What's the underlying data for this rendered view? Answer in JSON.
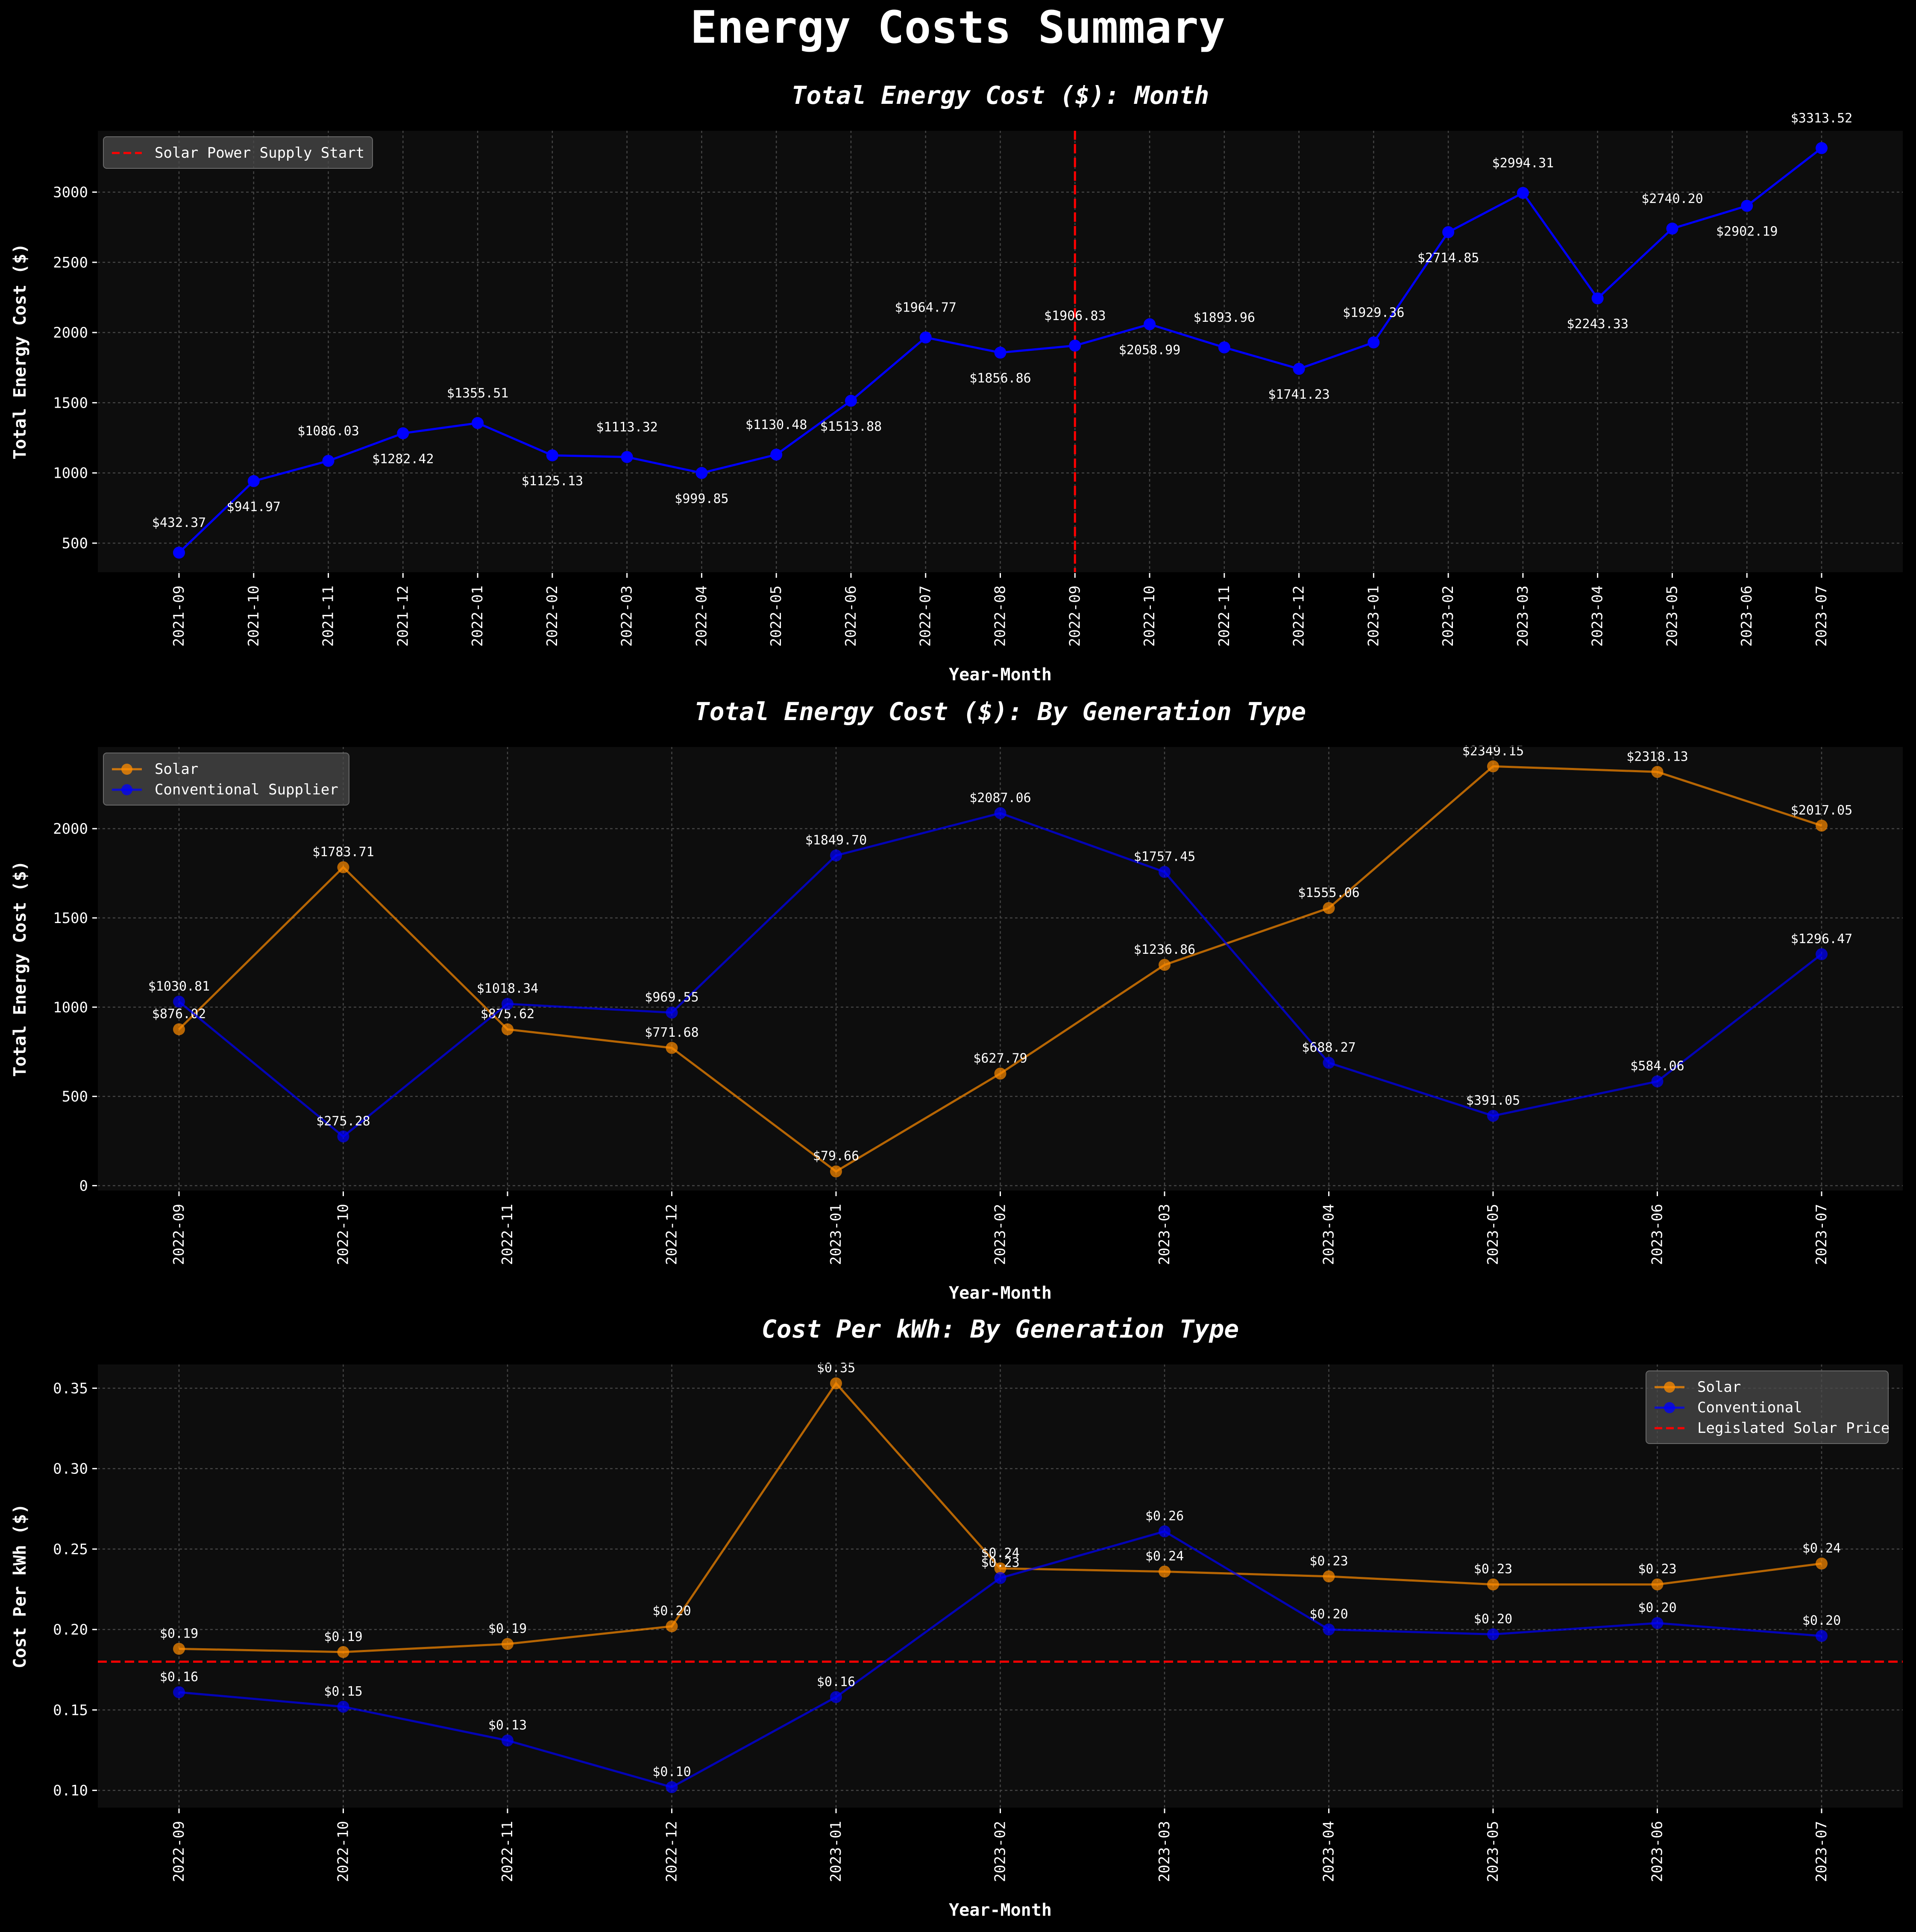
{
  "figure": {
    "suptitle": "Energy Costs Summary",
    "background": "#000000",
    "panel_background": "#0d0d0d",
    "text_color": "#ffffff"
  },
  "chart_data": [
    {
      "type": "line",
      "title": "Total Energy Cost ($): Month",
      "xlabel": "Year-Month",
      "ylabel": "Total Energy Cost ($)",
      "ylim": [
        290,
        3440
      ],
      "yticks": [
        500,
        1000,
        1500,
        2000,
        2500,
        3000
      ],
      "legend_position": "upper-left",
      "x": [
        "2021-09",
        "2021-10",
        "2021-11",
        "2021-12",
        "2022-01",
        "2022-02",
        "2022-03",
        "2022-04",
        "2022-05",
        "2022-06",
        "2022-07",
        "2022-08",
        "2022-09",
        "2022-10",
        "2022-11",
        "2022-12",
        "2023-01",
        "2023-02",
        "2023-03",
        "2023-04",
        "2023-05",
        "2023-06",
        "2023-07"
      ],
      "series": [
        {
          "color": "#0000ff",
          "values": [
            432.37,
            941.97,
            1086.03,
            1282.42,
            1355.51,
            1125.13,
            1113.32,
            999.85,
            1130.48,
            1513.88,
            1964.77,
            1856.86,
            1906.83,
            2058.99,
            1893.96,
            1741.23,
            1929.36,
            2714.85,
            2994.31,
            2243.33,
            2740.2,
            2902.19,
            3313.52
          ],
          "labels": [
            "$432.37",
            "$941.97",
            "$1086.03",
            "$1282.42",
            "$1355.51",
            "$1125.13",
            "$1113.32",
            "$999.85",
            "$1130.48",
            "$1513.88",
            "$1964.77",
            "$1856.86",
            "$1906.83",
            "$2058.99",
            "$1893.96",
            "$1741.23",
            "$1929.36",
            "$2714.85",
            "$2994.31",
            "$2243.33",
            "$2740.20",
            "$2902.19",
            "$3313.52"
          ]
        }
      ],
      "vline": {
        "at": "2022-09",
        "label": "Solar Power Supply Start",
        "color": "#ff0000"
      }
    },
    {
      "type": "line",
      "title": "Total Energy Cost ($): By Generation Type",
      "xlabel": "Year-Month",
      "ylabel": "Total Energy Cost ($)",
      "ylim": [
        -30,
        2460
      ],
      "yticks": [
        0,
        500,
        1000,
        1500,
        2000
      ],
      "legend_position": "upper-left",
      "x": [
        "2022-09",
        "2022-10",
        "2022-11",
        "2022-12",
        "2023-01",
        "2023-02",
        "2023-03",
        "2023-04",
        "2023-05",
        "2023-06",
        "2023-07"
      ],
      "series": [
        {
          "name": "Solar",
          "color": "#ff8c00",
          "values": [
            876.02,
            1783.71,
            875.62,
            771.68,
            79.66,
            627.79,
            1236.86,
            1555.06,
            2349.15,
            2318.13,
            2017.05
          ],
          "labels": [
            "$876.02",
            "$1783.71",
            "$875.62",
            "$771.68",
            "$79.66",
            "$627.79",
            "$1236.86",
            "$1555.06",
            "$2349.15",
            "$2318.13",
            "$2017.05"
          ]
        },
        {
          "name": "Conventional Supplier",
          "color": "#0000ff",
          "values": [
            1030.81,
            275.28,
            1018.34,
            969.55,
            1849.7,
            2087.06,
            1757.45,
            688.27,
            391.05,
            584.06,
            1296.47
          ],
          "labels": [
            "$1030.81",
            "$275.28",
            "$1018.34",
            "$969.55",
            "$1849.70",
            "$2087.06",
            "$1757.45",
            "$688.27",
            "$391.05",
            "$584.06",
            "$1296.47"
          ]
        }
      ]
    },
    {
      "type": "line",
      "title": "Cost Per kWh: By Generation Type",
      "xlabel": "Year-Month",
      "ylabel": "Cost Per kWh ($)",
      "ylim": [
        0.089,
        0.365
      ],
      "yticks": [
        0.1,
        0.15,
        0.2,
        0.25,
        0.3,
        0.35
      ],
      "legend_position": "upper-right",
      "x": [
        "2022-09",
        "2022-10",
        "2022-11",
        "2022-12",
        "2023-01",
        "2023-02",
        "2023-03",
        "2023-04",
        "2023-05",
        "2023-06",
        "2023-07"
      ],
      "series": [
        {
          "name": "Solar",
          "color": "#ff8c00",
          "values": [
            0.188,
            0.186,
            0.191,
            0.202,
            0.353,
            0.238,
            0.236,
            0.233,
            0.228,
            0.228,
            0.241
          ],
          "labels": [
            "$0.19",
            "$0.19",
            "$0.19",
            "$0.20",
            "$0.35",
            "$0.24",
            "$0.24",
            "$0.23",
            "$0.23",
            "$0.23",
            "$0.24"
          ]
        },
        {
          "name": "Conventional",
          "color": "#0000ff",
          "values": [
            0.161,
            0.152,
            0.131,
            0.102,
            0.158,
            0.232,
            0.261,
            0.2,
            0.197,
            0.204,
            0.196
          ],
          "labels": [
            "$0.16",
            "$0.15",
            "$0.13",
            "$0.10",
            "$0.16",
            "$0.23",
            "$0.26",
            "$0.20",
            "$0.20",
            "$0.20",
            "$0.20"
          ]
        }
      ],
      "hline": {
        "at": 0.18,
        "label": "Legislated Solar Price",
        "color": "#ff0000"
      }
    }
  ]
}
